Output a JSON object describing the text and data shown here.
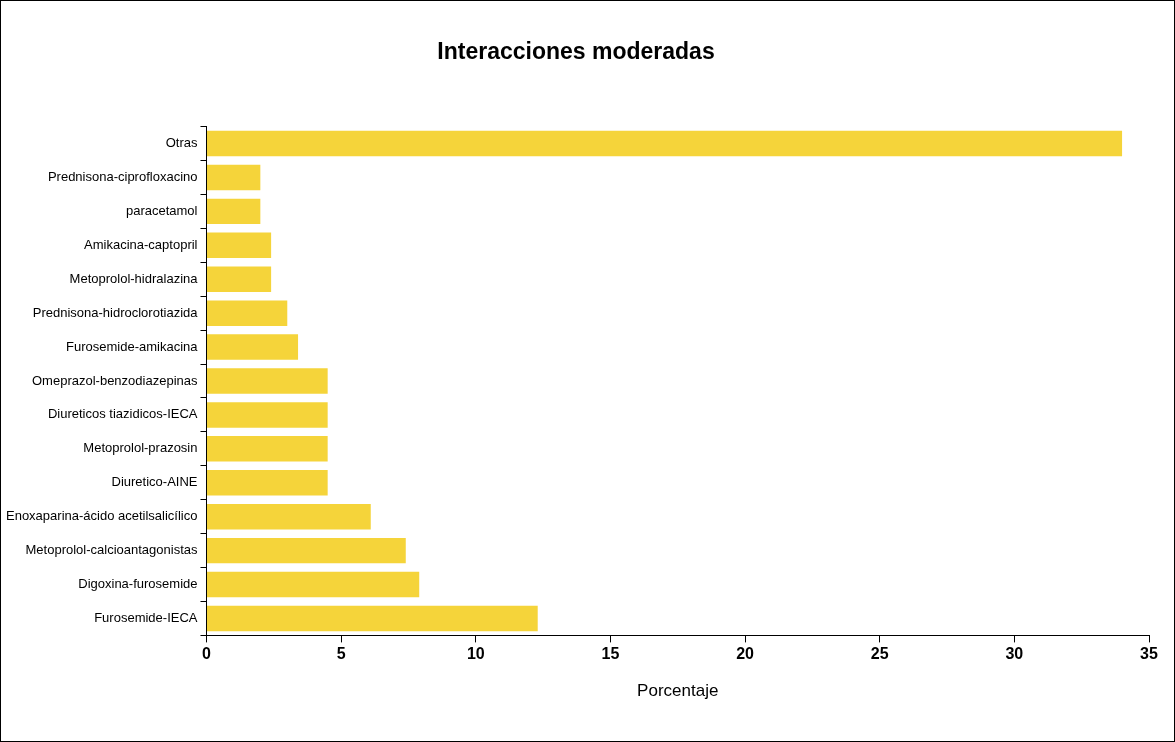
{
  "chart_data": {
    "type": "bar",
    "orientation": "horizontal",
    "title": "Interacciones moderadas",
    "xlabel": "Porcentaje",
    "categories": [
      "Otras",
      "Prednisona-ciprofloxacino",
      "paracetamol",
      "Amikacina-captopril",
      "Metoprolol-hidralazina",
      "Prednisona-hidroclorotiazida",
      "Furosemide-amikacina",
      "Omeprazol-benzodiazepinas",
      "Diureticos tiazidicos-IECA",
      "Metoprolol-prazosin",
      "Diuretico-AINE",
      "Enoxaparina-ácido acetilsalicílico",
      "Metoprolol-calcioantagonistas",
      "Digoxina-furosemide",
      "Furosemide-IECA"
    ],
    "values": [
      34.0,
      2.0,
      2.0,
      2.4,
      2.4,
      3.0,
      3.4,
      4.5,
      4.5,
      4.5,
      4.5,
      6.1,
      7.4,
      7.9,
      12.3
    ],
    "color": "#f5d43a",
    "xlim": [
      0,
      35
    ],
    "xticks": [
      0,
      5,
      10,
      15,
      20,
      25,
      30,
      35
    ],
    "grid": false,
    "legend": false
  }
}
